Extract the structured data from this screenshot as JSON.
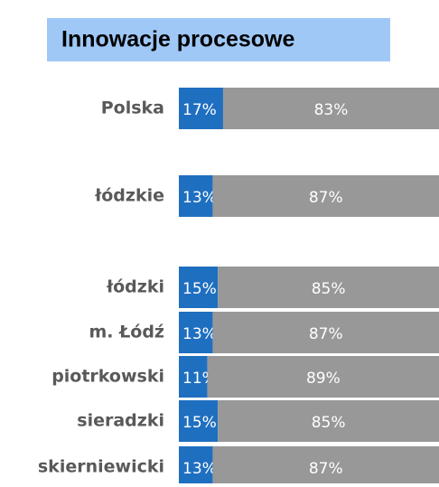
{
  "chart_data": {
    "type": "stacked_bar_horizontal_percent",
    "title": "Innowacje procesowe",
    "categories": [
      "Polska",
      "łódzkie",
      "łódzki",
      "m. Łódź",
      "piotrkowski",
      "sieradzki",
      "skierniewicki"
    ],
    "series": [
      {
        "color": "#1f6fc0",
        "values": [
          17,
          13,
          15,
          13,
          11,
          15,
          13
        ],
        "value_labels": [
          "17%",
          "13%",
          "15%",
          "13%",
          "11%",
          "15%",
          "13%"
        ]
      },
      {
        "color": "#989898",
        "values": [
          83,
          87,
          85,
          87,
          89,
          85,
          87
        ],
        "value_labels": [
          "83%",
          "87%",
          "85%",
          "87%",
          "89%",
          "85%",
          "87%"
        ]
      }
    ],
    "xlim": [
      0,
      100
    ]
  }
}
